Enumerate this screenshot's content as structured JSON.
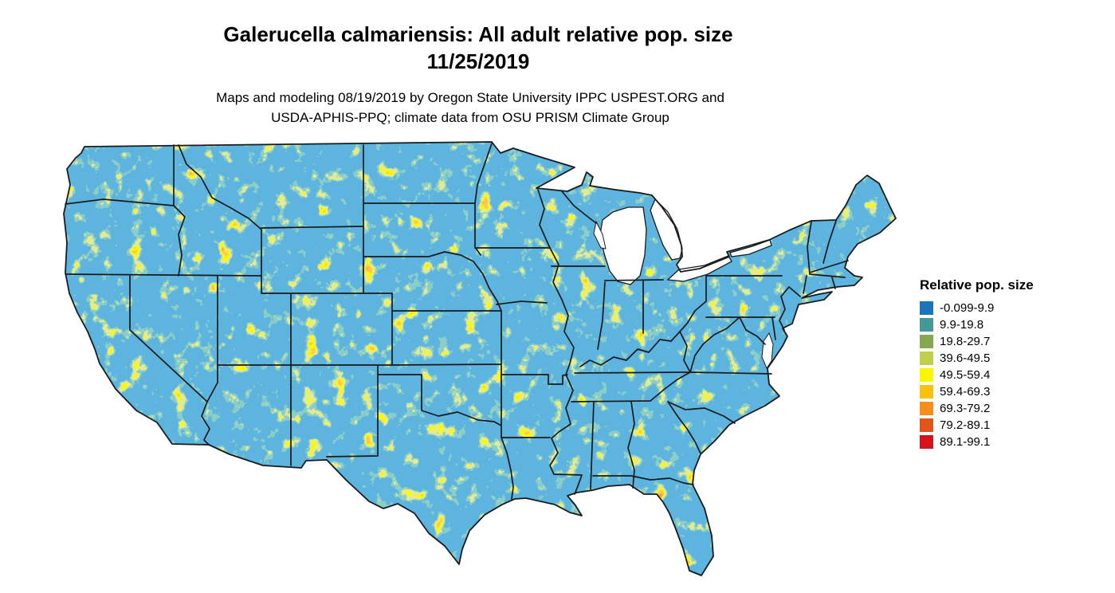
{
  "title": {
    "line1": "Galerucella calmariensis: All adult relative pop. size",
    "line2": "11/25/2019"
  },
  "caption": {
    "line1": "Maps and modeling 08/19/2019 by Oregon State University IPPC USPEST.ORG and",
    "line2": "USDA-APHIS-PPQ; climate data from OSU PRISM Climate Group"
  },
  "legend": {
    "title": "Relative pop. size",
    "items": [
      {
        "label": "-0.099-9.9",
        "color": "#1b75bc"
      },
      {
        "label": "9.9-19.8",
        "color": "#429996"
      },
      {
        "label": "19.8-29.7",
        "color": "#83a84f"
      },
      {
        "label": "39.6-49.5",
        "color": "#c2cf4c"
      },
      {
        "label": "49.5-59.4",
        "color": "#fbf500"
      },
      {
        "label": "59.4-69.3",
        "color": "#fbc20d"
      },
      {
        "label": "69.3-79.2",
        "color": "#f68e1e"
      },
      {
        "label": "79.2-89.1",
        "color": "#e2551a"
      },
      {
        "label": "89.1-99.1",
        "color": "#d6121a"
      }
    ]
  },
  "map": {
    "region": "Conterminous United States",
    "base_color": "#1b75bc",
    "border_color": "#1a1a1a",
    "water_color": "#ffffff"
  }
}
